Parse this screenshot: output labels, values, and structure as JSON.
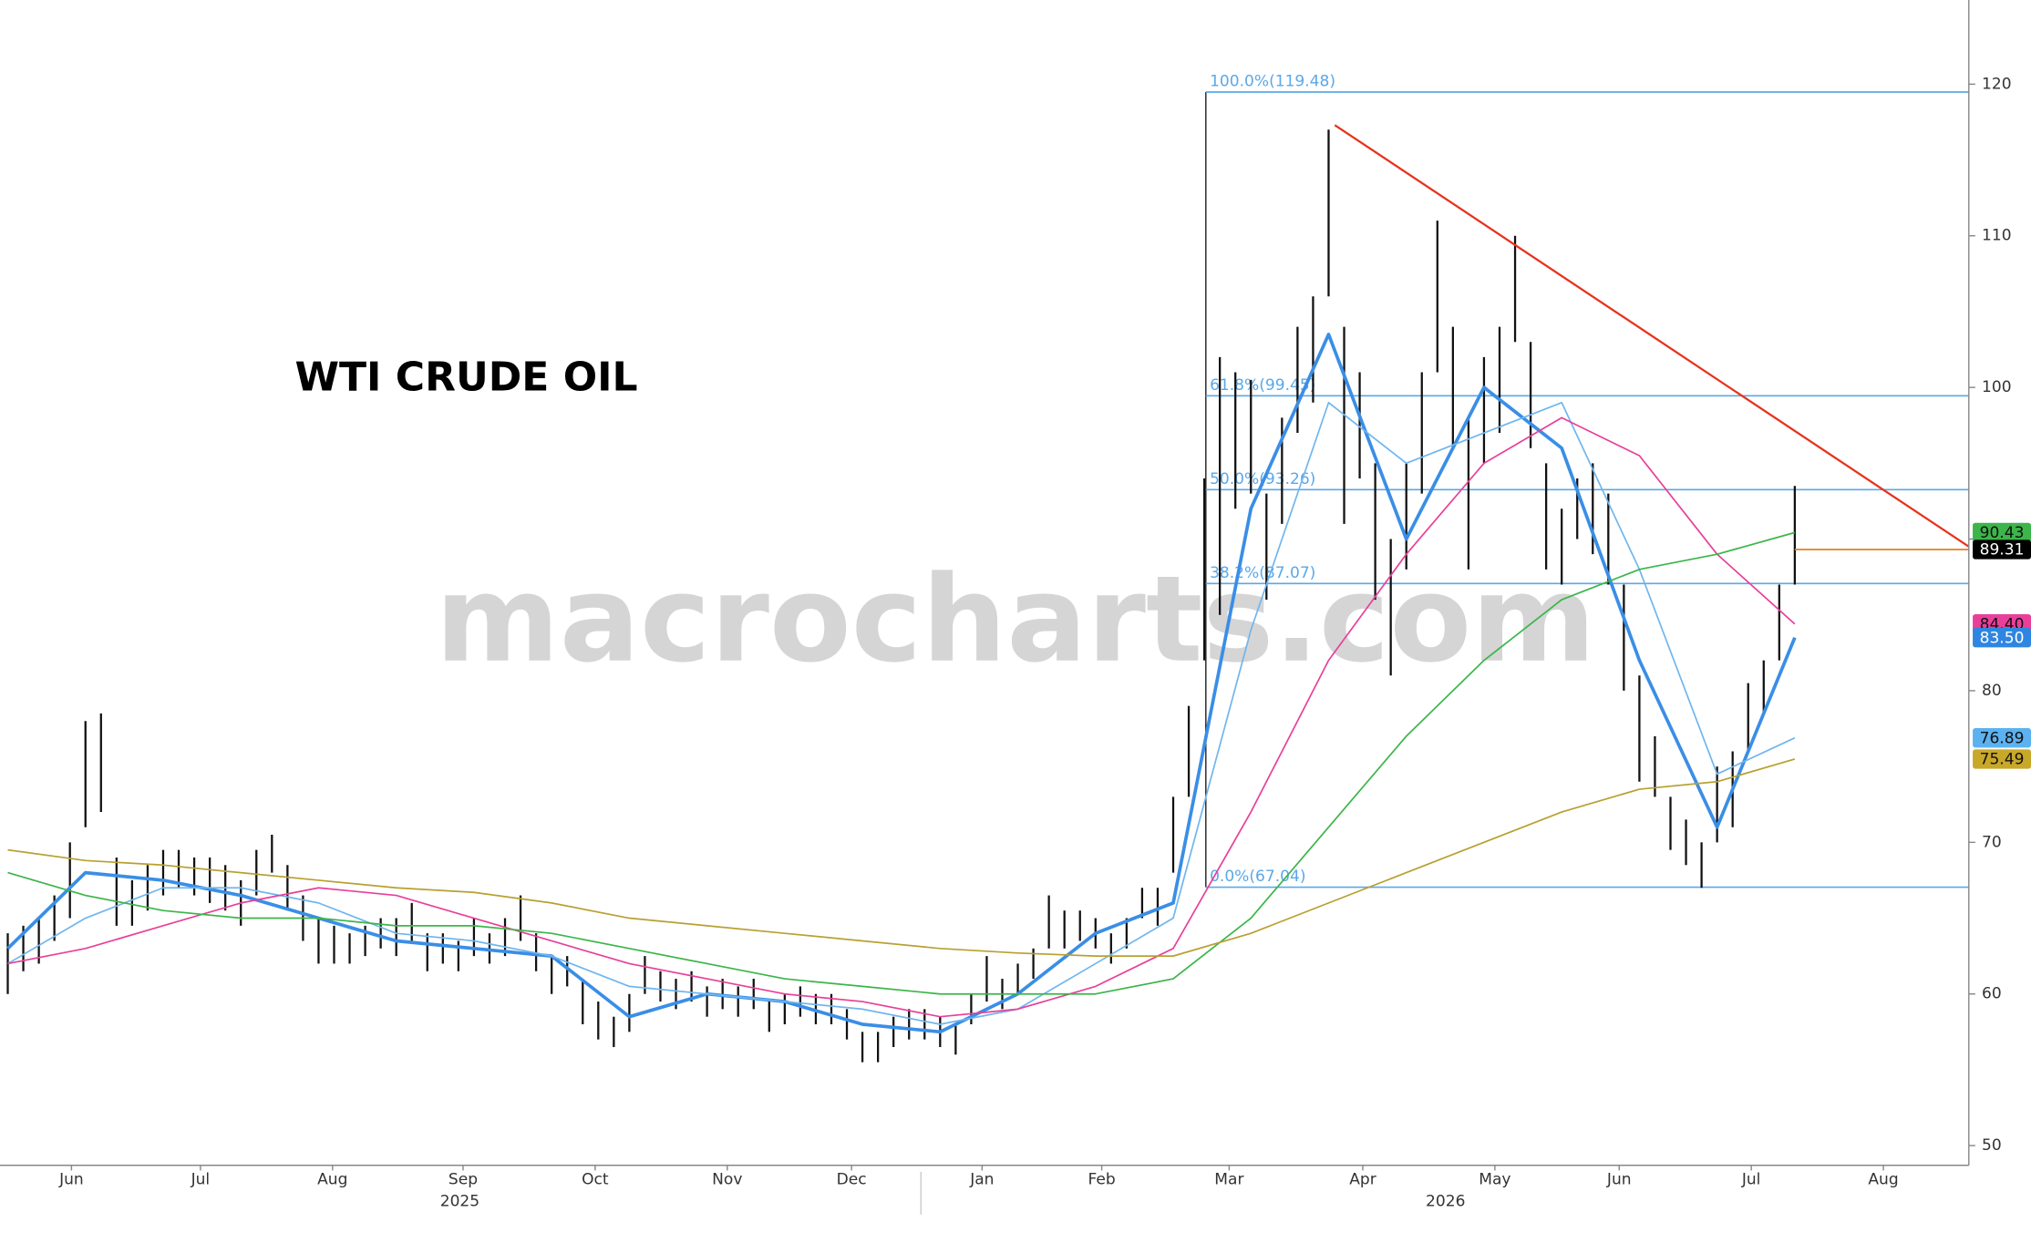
{
  "chart_data": {
    "type": "ohlc",
    "title": "WTI CRUDE OIL",
    "watermark": "macrocharts.com",
    "xlim": [
      -0.5,
      126.2
    ],
    "ylim": [
      48.7,
      125.55
    ],
    "yticks": [
      50,
      60,
      70,
      80,
      90,
      100,
      110,
      120
    ],
    "xticks": [
      {
        "value": 4.1,
        "label": "Jun"
      },
      {
        "value": 12.4,
        "label": "Jul"
      },
      {
        "value": 20.9,
        "label": "Aug"
      },
      {
        "value": 29.3,
        "label": "Sep"
      },
      {
        "value": 37.8,
        "label": "Oct"
      },
      {
        "value": 46.3,
        "label": "Nov"
      },
      {
        "value": 54.3,
        "label": "Dec"
      },
      {
        "value": 62.7,
        "label": "Jan"
      },
      {
        "value": 70.4,
        "label": "Feb"
      },
      {
        "value": 78.6,
        "label": "Mar"
      },
      {
        "value": 87.2,
        "label": "Apr"
      },
      {
        "value": 95.7,
        "label": "May"
      },
      {
        "value": 103.7,
        "label": "Jun"
      },
      {
        "value": 112.2,
        "label": "Jul"
      },
      {
        "value": 120.7,
        "label": "Aug"
      }
    ],
    "years": [
      "2025",
      "2026"
    ],
    "bars": {
      "color": "#111111",
      "high": [
        64,
        64.5,
        65,
        66.5,
        70,
        78,
        78.5,
        69,
        67.5,
        68.5,
        69.5,
        69.5,
        69,
        69,
        68.5,
        67.5,
        69.5,
        70.5,
        68.5,
        66.5,
        65,
        64.5,
        64,
        64.5,
        65,
        65,
        66,
        64,
        64,
        63.5,
        65,
        64,
        65,
        66.5,
        64,
        62.5,
        62.5,
        61,
        59.5,
        58.5,
        60,
        62.5,
        61.5,
        61,
        61.5,
        60.5,
        61,
        60.5,
        61,
        59.5,
        60,
        60.5,
        60,
        60,
        59,
        57.5,
        57.5,
        58.5,
        59,
        59,
        58.5,
        58,
        60,
        62.5,
        61,
        62,
        63,
        66.5,
        65.5,
        65.5,
        65,
        64,
        65,
        67,
        67,
        73,
        79,
        94,
        102,
        101,
        100.5,
        93,
        98,
        104,
        106,
        117,
        104,
        101,
        95,
        90,
        95,
        101,
        111,
        104,
        98,
        102,
        104,
        110,
        103,
        95,
        92,
        94,
        95,
        93,
        87,
        81,
        77,
        73,
        71.5,
        70,
        75,
        76,
        80.5,
        82,
        87,
        93.5
      ],
      "low": [
        60,
        61.5,
        62,
        63.5,
        65,
        71,
        72,
        64.5,
        64.5,
        65.5,
        66.5,
        67,
        66.5,
        66,
        65.5,
        64.5,
        66.5,
        68,
        65.5,
        63.5,
        62,
        62,
        62,
        62.5,
        63,
        62.5,
        63.5,
        61.5,
        62,
        61.5,
        62.5,
        62,
        62.5,
        63.5,
        61.5,
        60,
        60.5,
        58,
        57,
        56.5,
        57.5,
        60,
        59.5,
        59,
        59.5,
        58.5,
        59,
        58.5,
        59,
        57.5,
        58,
        58.5,
        58,
        58,
        57,
        55.5,
        55.5,
        56.5,
        57,
        57,
        56.5,
        56,
        58,
        59.5,
        59,
        60,
        61,
        63,
        63,
        63.5,
        63,
        62,
        63,
        65,
        64.5,
        68,
        73,
        82,
        85,
        92,
        93,
        86,
        91,
        97,
        99,
        106,
        91,
        94,
        86,
        81,
        88,
        93,
        101,
        96,
        88,
        95,
        97,
        103,
        96,
        88,
        87,
        90,
        89,
        87,
        80,
        74,
        73,
        69.5,
        68.5,
        67,
        70,
        71,
        76,
        78.5,
        82,
        87
      ]
    },
    "series": [
      {
        "name": "fast",
        "color": "#3a8ee6",
        "width": 2.6,
        "x": [
          0,
          5,
          10,
          15,
          20,
          25,
          30,
          35,
          40,
          45,
          50,
          55,
          60,
          65,
          70,
          75,
          80,
          85,
          90,
          95,
          100,
          105,
          110,
          115
        ],
        "values": [
          63,
          68,
          67.5,
          66.5,
          65,
          63.5,
          63,
          62.5,
          58.5,
          60,
          59.5,
          58,
          57.5,
          60,
          64,
          66,
          92,
          103.5,
          90,
          100,
          96,
          82,
          71,
          83.5
        ],
        "end_label": "83.50",
        "label_bg": "#2f86e0",
        "label_fg": "#ffffff"
      },
      {
        "name": "medium",
        "color": "#70b6ee",
        "width": 1.2,
        "x": [
          0,
          5,
          10,
          15,
          20,
          25,
          30,
          35,
          40,
          45,
          50,
          55,
          60,
          65,
          70,
          75,
          80,
          85,
          90,
          95,
          100,
          105,
          110,
          115
        ],
        "values": [
          62,
          65,
          67,
          67,
          66,
          64,
          63.5,
          62.5,
          60.5,
          60,
          59.5,
          59,
          58,
          59,
          62,
          65,
          84,
          99,
          95,
          97,
          99,
          88,
          74.5,
          76.89
        ],
        "end_label": "76.89",
        "label_bg": "#5cb2f0",
        "label_fg": "#111111"
      },
      {
        "name": "slow",
        "color": "#e8409a",
        "width": 1.2,
        "x": [
          0,
          5,
          10,
          15,
          20,
          25,
          30,
          35,
          40,
          45,
          50,
          55,
          60,
          65,
          70,
          75,
          80,
          85,
          90,
          95,
          100,
          105,
          110,
          115
        ],
        "values": [
          62,
          63,
          64.5,
          66,
          67,
          66.5,
          65,
          63.5,
          62,
          61,
          60,
          59.5,
          58.5,
          59,
          60.5,
          63,
          72,
          82,
          89,
          95,
          98,
          95.5,
          89,
          84.4
        ],
        "end_label": "84.40",
        "label_bg": "#e8409a",
        "label_fg": "#111111"
      },
      {
        "name": "long",
        "color": "#3cb54a",
        "width": 1.2,
        "x": [
          0,
          5,
          10,
          15,
          20,
          25,
          30,
          35,
          40,
          45,
          50,
          55,
          60,
          65,
          70,
          75,
          80,
          85,
          90,
          95,
          100,
          105,
          110,
          115
        ],
        "values": [
          68,
          66.5,
          65.5,
          65,
          65,
          64.5,
          64.5,
          64,
          63,
          62,
          61,
          60.5,
          60,
          60,
          60,
          61,
          65,
          71,
          77,
          82,
          86,
          88,
          89,
          90.43
        ],
        "end_label": "90.43",
        "label_bg": "#3cb54a",
        "label_fg": "#111111"
      },
      {
        "name": "longest",
        "color": "#b8a030",
        "width": 1.2,
        "x": [
          0,
          5,
          10,
          15,
          20,
          25,
          30,
          35,
          40,
          45,
          50,
          55,
          60,
          65,
          70,
          75,
          80,
          85,
          90,
          95,
          100,
          105,
          110,
          115
        ],
        "values": [
          69.5,
          68.8,
          68.5,
          68,
          67.5,
          67,
          66.7,
          66,
          65,
          64.5,
          64,
          63.5,
          63,
          62.7,
          62.5,
          62.5,
          64,
          66,
          68,
          70,
          72,
          73.5,
          74,
          75.49
        ],
        "end_label": "75.49",
        "label_bg": "#c8a828",
        "label_fg": "#111111"
      }
    ],
    "last_price": {
      "value": 89.31,
      "color": "#e08020"
    },
    "fib": {
      "x": 77.1,
      "color": "#5aa8e8",
      "levels": [
        {
          "value": 119.48,
          "label": "100.0%(119.48)"
        },
        {
          "value": 99.45,
          "label": "61.8%(99.45)"
        },
        {
          "value": 93.26,
          "label": "50.0%(93.26)"
        },
        {
          "value": 87.07,
          "label": "38.2%(87.07)"
        },
        {
          "value": 67.04,
          "label": "0.0%(67.04)"
        }
      ]
    },
    "trendline": {
      "color": "#e8321e",
      "x": [
        85.4,
        126.2
      ],
      "values": [
        117.3,
        89.5
      ]
    }
  }
}
